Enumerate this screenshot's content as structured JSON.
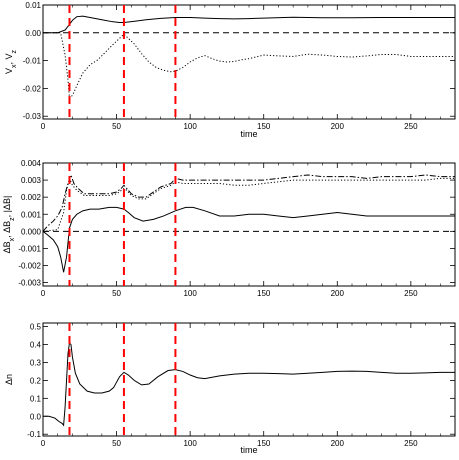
{
  "chart_data": [
    {
      "type": "line",
      "xlabel": "time",
      "ylabel": "V_x, V_z",
      "xlim": [
        0,
        280
      ],
      "ylim": [
        -0.031,
        0.01
      ],
      "xticks": [
        0,
        50,
        100,
        150,
        200,
        250
      ],
      "xtick_labels": [
        "0",
        "50",
        "100",
        "150",
        "200",
        "250"
      ],
      "yticks": [
        -0.03,
        -0.02,
        -0.01,
        0.0,
        0.01
      ],
      "ytick_labels": [
        "-0.03",
        "-0.02",
        "-0.01",
        "0.00",
        "0.01"
      ],
      "grid": false,
      "series": [
        {
          "style": "solid",
          "x": [
            0,
            10,
            15,
            18,
            20,
            23,
            27,
            32,
            40,
            47,
            52,
            55,
            58,
            63,
            70,
            80,
            90,
            100,
            110,
            120,
            130,
            140,
            150,
            170,
            190,
            210,
            230,
            250,
            265,
            280
          ],
          "y": [
            0,
            0,
            0.001,
            0.003,
            0.0045,
            0.0058,
            0.006,
            0.0055,
            0.0047,
            0.004,
            0.0037,
            0.0037,
            0.0039,
            0.0042,
            0.0047,
            0.0052,
            0.0055,
            0.0055,
            0.0053,
            0.0051,
            0.005,
            0.0051,
            0.0053,
            0.0056,
            0.0054,
            0.0054,
            0.0055,
            0.0055,
            0.0055,
            0.0055
          ]
        },
        {
          "style": "dotted",
          "x": [
            0,
            12,
            15,
            17,
            18,
            20,
            23,
            27,
            32,
            37,
            42,
            47,
            52,
            55,
            58,
            62,
            67,
            72,
            77,
            82,
            87,
            90,
            95,
            100,
            105,
            110,
            115,
            120,
            125,
            130,
            135,
            140,
            150,
            160,
            170,
            180,
            190,
            200,
            210,
            220,
            230,
            240,
            250,
            260,
            270,
            280
          ],
          "y": [
            0,
            0,
            -0.008,
            -0.017,
            -0.0235,
            -0.0225,
            -0.019,
            -0.0145,
            -0.0115,
            -0.0098,
            -0.0072,
            -0.0045,
            -0.002,
            -0.0005,
            -0.002,
            -0.004,
            -0.0075,
            -0.0105,
            -0.0125,
            -0.0135,
            -0.014,
            -0.0138,
            -0.0125,
            -0.0105,
            -0.009,
            -0.0082,
            -0.0093,
            -0.0102,
            -0.0105,
            -0.0103,
            -0.0097,
            -0.0093,
            -0.008,
            -0.0083,
            -0.0085,
            -0.0077,
            -0.008,
            -0.0085,
            -0.0087,
            -0.0083,
            -0.0078,
            -0.0078,
            -0.0085,
            -0.0085,
            -0.0085,
            -0.0085
          ]
        },
        {
          "style": "dashed",
          "x": [
            0,
            280
          ],
          "y": [
            0,
            0
          ]
        }
      ],
      "markers": {
        "x": [
          18,
          55,
          90
        ],
        "color": "#ff0000"
      }
    },
    {
      "type": "line",
      "xlabel": "",
      "ylabel": "ΔB_x, ΔB_z, |ΔB|",
      "xlim": [
        0,
        280
      ],
      "ylim": [
        -0.0032,
        0.004
      ],
      "xticks": [
        0,
        50,
        100,
        150,
        200,
        250
      ],
      "xtick_labels": [
        "0",
        "50",
        "100",
        "150",
        "200",
        "250"
      ],
      "yticks": [
        -0.003,
        -0.002,
        -0.001,
        0.0,
        0.001,
        0.002,
        0.003,
        0.004
      ],
      "ytick_labels": [
        "-0.003",
        "-0.002",
        "-0.001",
        "0.000",
        "0.001",
        "0.002",
        "0.003",
        "0.004"
      ],
      "grid": false,
      "series": [
        {
          "style": "solid",
          "x": [
            0,
            3,
            7,
            10,
            12,
            14,
            16,
            18,
            20,
            23,
            27,
            32,
            38,
            45,
            50,
            55,
            58,
            62,
            68,
            75,
            82,
            90,
            97,
            102,
            110,
            120,
            130,
            140,
            150,
            160,
            170,
            180,
            190,
            200,
            210,
            220,
            230,
            240,
            250,
            260,
            270,
            280
          ],
          "y": [
            0,
            -0.0002,
            -0.0005,
            -0.0009,
            -0.0015,
            -0.0024,
            -0.0015,
            0.0002,
            0.0007,
            0.001,
            0.0012,
            0.0013,
            0.0013,
            0.0014,
            0.0014,
            0.0013,
            0.0011,
            0.0008,
            0.0006,
            0.0007,
            0.0009,
            0.0012,
            0.0014,
            0.0014,
            0.0012,
            0.0009,
            0.0009,
            0.001,
            0.001,
            0.0009,
            0.0008,
            0.0009,
            0.001,
            0.0011,
            0.001,
            0.0009,
            0.0009,
            0.0009,
            0.0009,
            0.0009,
            0.0009,
            0.0009
          ]
        },
        {
          "style": "dashdot",
          "x": [
            0,
            3,
            7,
            10,
            13,
            15,
            17,
            19,
            21,
            24,
            28,
            33,
            38,
            45,
            50,
            53,
            55,
            57,
            60,
            65,
            70,
            75,
            80,
            87,
            90,
            95,
            100,
            110,
            120,
            130,
            140,
            150,
            160,
            170,
            180,
            190,
            200,
            210,
            220,
            230,
            240,
            250,
            260,
            270,
            280
          ],
          "y": [
            0,
            0.0003,
            0.0006,
            0.0009,
            0.0014,
            0.0022,
            0.0028,
            0.0033,
            0.0028,
            0.0025,
            0.0022,
            0.0022,
            0.0022,
            0.0022,
            0.0023,
            0.0025,
            0.0027,
            0.0025,
            0.0022,
            0.002,
            0.002,
            0.0023,
            0.0026,
            0.0028,
            0.0031,
            0.003,
            0.003,
            0.003,
            0.003,
            0.003,
            0.003,
            0.003,
            0.0031,
            0.0032,
            0.0033,
            0.0032,
            0.0032,
            0.0032,
            0.0031,
            0.0032,
            0.0032,
            0.0032,
            0.0033,
            0.0032,
            0.0032
          ]
        },
        {
          "style": "dotted",
          "x": [
            0,
            10,
            14,
            16,
            18,
            20,
            23,
            28,
            33,
            38,
            45,
            50,
            55,
            57,
            60,
            65,
            70,
            75,
            80,
            87,
            90,
            95,
            100,
            110,
            120,
            130,
            140,
            150,
            160,
            170,
            180,
            190,
            200,
            210,
            220,
            230,
            240,
            250,
            260,
            270,
            280
          ],
          "y": [
            0,
            0.0001,
            0.0011,
            0.0024,
            0.0031,
            0.0027,
            0.0024,
            0.0021,
            0.0021,
            0.0021,
            0.0021,
            0.0022,
            0.0025,
            0.0024,
            0.0021,
            0.0019,
            0.0019,
            0.0022,
            0.0025,
            0.0027,
            0.0029,
            0.0028,
            0.0028,
            0.0028,
            0.0028,
            0.0027,
            0.0027,
            0.0028,
            0.0029,
            0.003,
            0.003,
            0.003,
            0.003,
            0.003,
            0.003,
            0.003,
            0.003,
            0.003,
            0.003,
            0.0031,
            0.0031
          ]
        },
        {
          "style": "dashed",
          "x": [
            0,
            280
          ],
          "y": [
            0,
            0
          ]
        }
      ],
      "markers": {
        "x": [
          18,
          55,
          90
        ],
        "color": "#ff0000"
      }
    },
    {
      "type": "line",
      "xlabel": "time",
      "ylabel": "Δn",
      "xlim": [
        0,
        280
      ],
      "ylim": [
        -0.11,
        0.52
      ],
      "xticks": [
        0,
        50,
        100,
        150,
        200,
        250
      ],
      "xtick_labels": [
        "0",
        "50",
        "100",
        "150",
        "200",
        "250"
      ],
      "yticks": [
        -0.1,
        0.0,
        0.1,
        0.2,
        0.3,
        0.4,
        0.5
      ],
      "ytick_labels": [
        "-0.1",
        "0.0",
        "0.1",
        "0.2",
        "0.3",
        "0.4",
        "0.5"
      ],
      "grid": false,
      "series": [
        {
          "style": "solid",
          "x": [
            0,
            4,
            8,
            11,
            13,
            14,
            15,
            16,
            17,
            18,
            19,
            20,
            22,
            25,
            30,
            35,
            40,
            45,
            48,
            50,
            52,
            55,
            58,
            62,
            67,
            72,
            78,
            85,
            90,
            95,
            100,
            105,
            110,
            120,
            130,
            140,
            150,
            160,
            170,
            180,
            190,
            200,
            210,
            220,
            230,
            240,
            250,
            260,
            270,
            280
          ],
          "y": [
            0,
            0,
            -0.01,
            -0.03,
            -0.04,
            -0.05,
            0.05,
            0.2,
            0.35,
            0.41,
            0.4,
            0.33,
            0.24,
            0.18,
            0.14,
            0.13,
            0.13,
            0.14,
            0.16,
            0.19,
            0.22,
            0.245,
            0.23,
            0.2,
            0.175,
            0.18,
            0.22,
            0.255,
            0.26,
            0.25,
            0.23,
            0.215,
            0.21,
            0.225,
            0.235,
            0.24,
            0.24,
            0.238,
            0.235,
            0.24,
            0.245,
            0.25,
            0.252,
            0.25,
            0.245,
            0.24,
            0.24,
            0.242,
            0.245,
            0.245
          ]
        }
      ],
      "markers": {
        "x": [
          18,
          55,
          90
        ],
        "color": "#ff0000"
      }
    }
  ]
}
